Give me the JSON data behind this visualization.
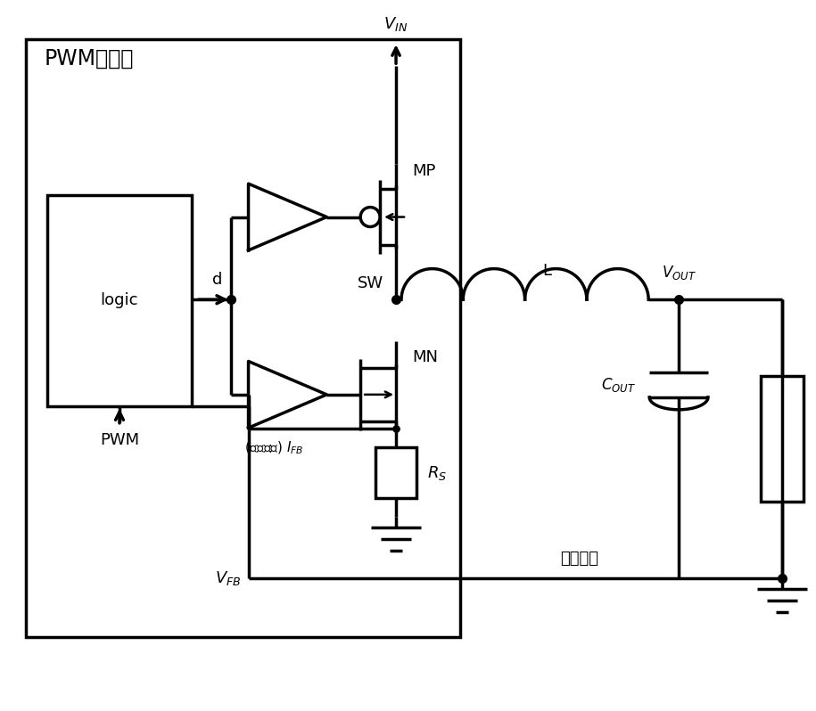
{
  "bg": "#ffffff",
  "lc": "#000000",
  "lw": 2.5,
  "fw": 9.15,
  "fh": 7.98,
  "title": "PWM控制器",
  "logic": "logic",
  "PWM_lbl": "PWM",
  "d_lbl": "d",
  "MP_lbl": "MP",
  "MN_lbl": "MN",
  "SW_lbl": "SW",
  "L_lbl": "L",
  "VIN_lbl": "$V_{IN}$",
  "VOUT_lbl": "$V_{OUT}$",
  "COUT_lbl": "$C_{OUT}$",
  "RS_lbl": "$R_S$",
  "VFB_lbl": "$V_{FB}$",
  "IFB_lbl": "(电流反馈) $I_{FB}$",
  "feedback_lbl": "反馈电压",
  "xlim": [
    0,
    9.15
  ],
  "ylim": [
    0,
    7.98
  ]
}
